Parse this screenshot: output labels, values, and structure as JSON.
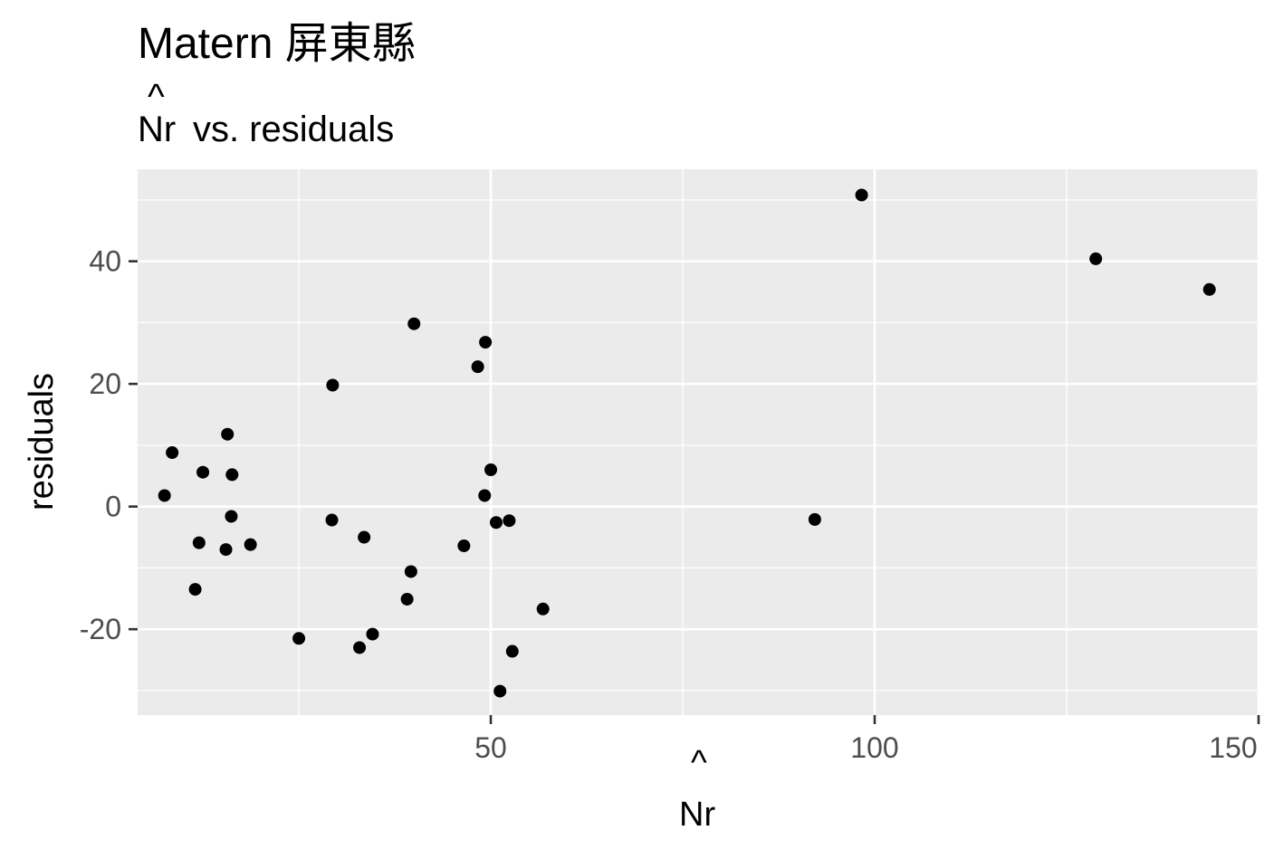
{
  "chart_data": {
    "type": "scatter",
    "title": "Matern 屏東縣",
    "subtitle": "vs. residuals",
    "subtitle_prefix": "Nr",
    "xlabel": "Nr",
    "ylabel": "residuals",
    "xlim": [
      4,
      150
    ],
    "ylim": [
      -34,
      55
    ],
    "x_ticks": [
      50,
      100,
      150
    ],
    "x_tick_labels": [
      "50",
      "100",
      "150"
    ],
    "x_minor_ticks": [
      25,
      75,
      125
    ],
    "y_ticks": [
      -20,
      0,
      20,
      40
    ],
    "y_tick_labels": [
      "-20",
      "0",
      "20",
      "40"
    ],
    "y_minor_ticks": [
      -30,
      -10,
      10,
      30,
      50
    ],
    "grid": true,
    "legend": "none",
    "x": [
      7.5,
      8.5,
      11.5,
      12,
      12.5,
      15.5,
      15.7,
      16.2,
      16.3,
      18.7,
      25,
      29.3,
      29.4,
      32.9,
      33.5,
      34.6,
      39.1,
      39.6,
      40,
      46.5,
      48.3,
      49.2,
      49.3,
      50,
      50.7,
      51.2,
      52.4,
      52.8,
      56.8,
      92.2,
      98.3,
      128.8,
      143.6
    ],
    "y": [
      1.8,
      8.8,
      -13.5,
      -5.9,
      5.6,
      -7.0,
      11.8,
      -1.6,
      5.2,
      -6.2,
      -21.5,
      -2.2,
      19.8,
      -23.0,
      -5.0,
      -20.8,
      -15.1,
      -10.6,
      29.8,
      -6.4,
      22.8,
      1.8,
      26.8,
      6.0,
      -2.6,
      -30.1,
      -2.3,
      -23.6,
      -16.7,
      -2.1,
      50.8,
      40.4,
      35.4
    ],
    "point_color": "#000000",
    "panel_color": "#ebebeb",
    "grid_color": "#ffffff"
  }
}
